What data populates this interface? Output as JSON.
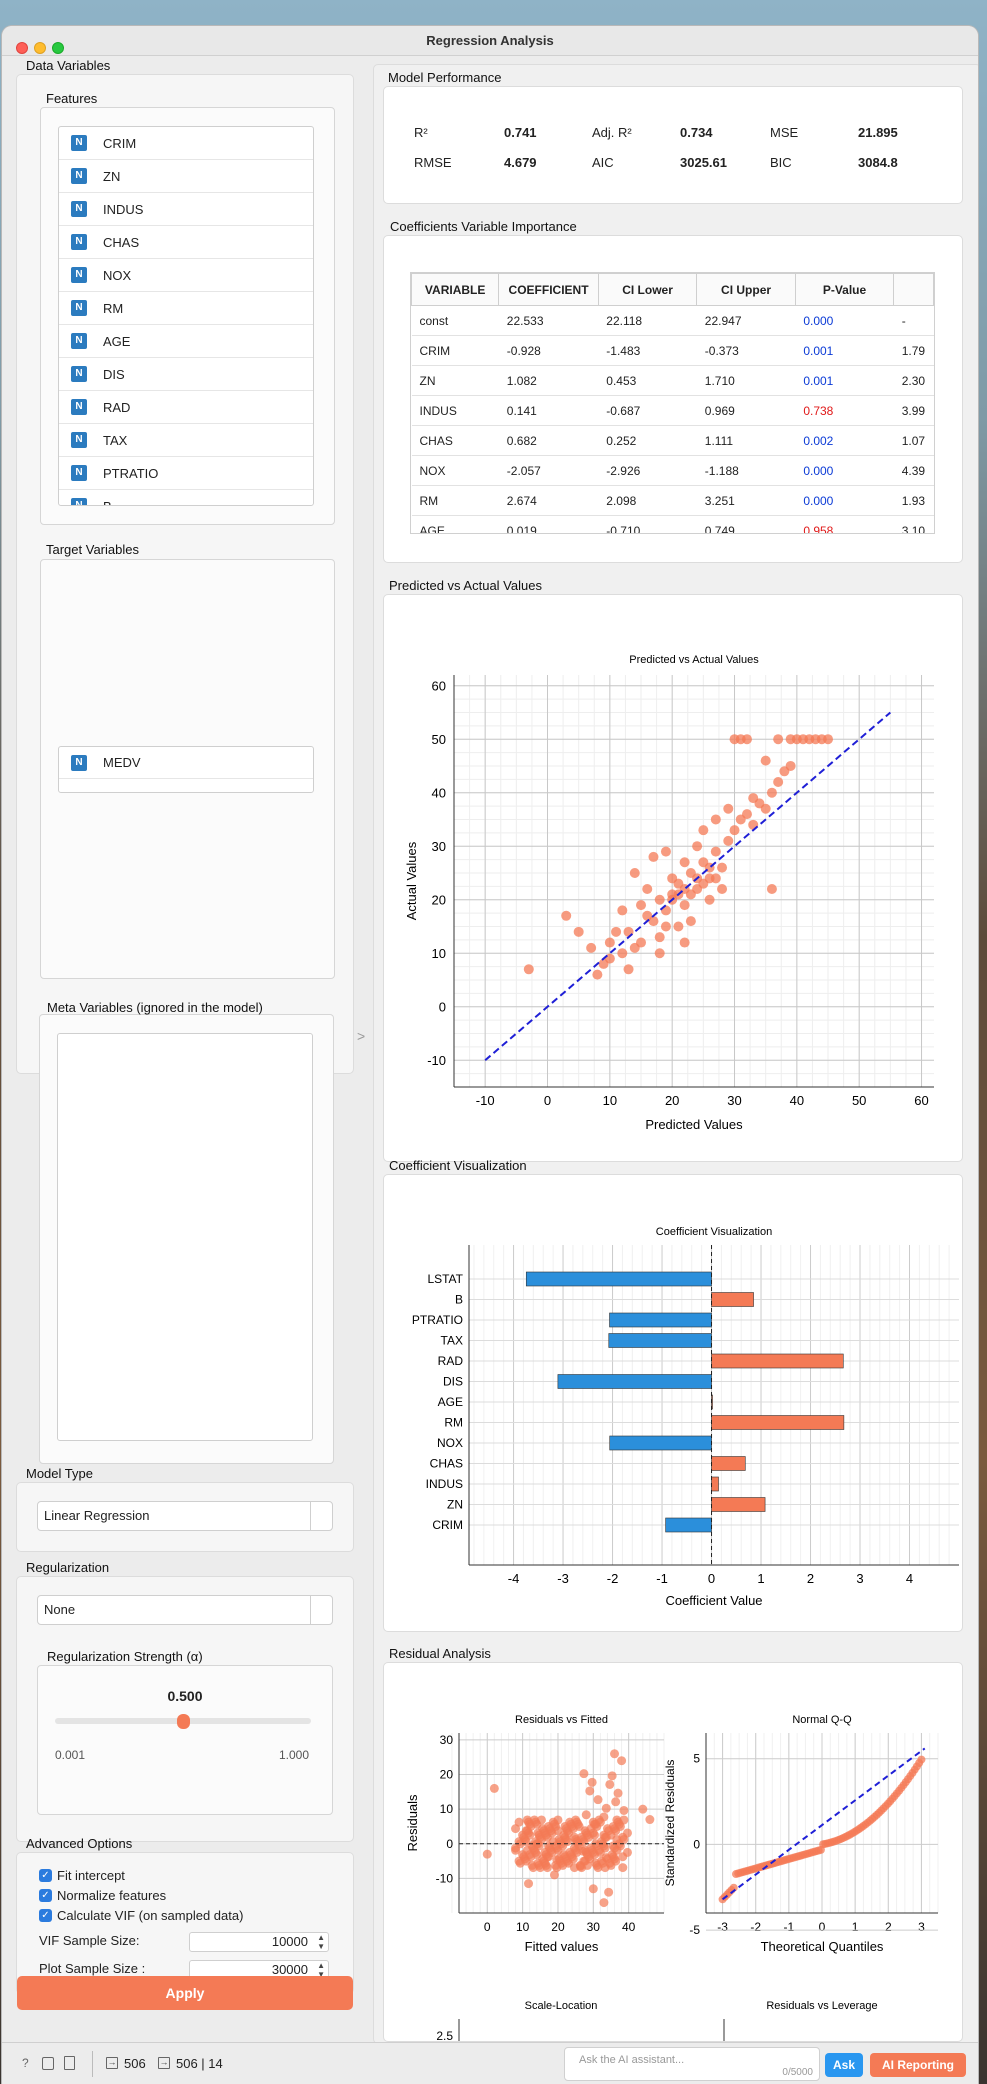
{
  "window": {
    "title": "Regression Analysis"
  },
  "left": {
    "data_variables": "Data Variables",
    "features_title": "Features",
    "features": [
      "CRIM",
      "ZN",
      "INDUS",
      "CHAS",
      "NOX",
      "RM",
      "AGE",
      "DIS",
      "RAD",
      "TAX",
      "PTRATIO",
      "B"
    ],
    "badge": "N",
    "target_title": "Target Variables",
    "targets": [
      "MEDV"
    ],
    "meta_title": "Meta Variables (ignored in the model)",
    "model_type_title": "Model Type",
    "model_type_value": "Linear Regression",
    "regularization_title": "Regularization",
    "regularization_value": "None",
    "strength_title": "Regularization Strength (α)",
    "strength_value": "0.500",
    "strength_fraction": 0.5,
    "strength_min": "0.001",
    "strength_max": "1.000",
    "advanced_title": "Advanced Options",
    "opt_fit_intercept": "Fit intercept",
    "opt_normalize": "Normalize features",
    "opt_vif": "Calculate VIF (on sampled data)",
    "vif_label": "VIF Sample Size:",
    "vif_value": "10000",
    "plot_label": "Plot Sample Size :",
    "plot_value": "30000",
    "apply": "Apply"
  },
  "performance": {
    "title": "Model Performance",
    "r2_label": "R²",
    "r2": "0.741",
    "adjr2_label": "Adj. R²",
    "adjr2": "0.734",
    "mse_label": "MSE",
    "mse": "21.895",
    "rmse_label": "RMSE",
    "rmse": "4.679",
    "aic_label": "AIC",
    "aic": "3025.61",
    "bic_label": "BIC",
    "bic": "3084.8"
  },
  "coef_table": {
    "title": "Coefficients  Variable Importance",
    "headers": [
      "VARIABLE",
      "COEFFICIENT",
      "CI Lower",
      "CI Upper",
      "P-Value",
      ""
    ],
    "rows": [
      [
        "const",
        "22.533",
        "22.118",
        "22.947",
        "0.000",
        "-"
      ],
      [
        "CRIM",
        "-0.928",
        "-1.483",
        "-0.373",
        "0.001",
        "1.79"
      ],
      [
        "ZN",
        "1.082",
        "0.453",
        "1.710",
        "0.001",
        "2.30"
      ],
      [
        "INDUS",
        "0.141",
        "-0.687",
        "0.969",
        "0.738",
        "3.99"
      ],
      [
        "CHAS",
        "0.682",
        "0.252",
        "1.111",
        "0.002",
        "1.07"
      ],
      [
        "NOX",
        "-2.057",
        "-2.926",
        "-1.188",
        "0.000",
        "4.39"
      ],
      [
        "RM",
        "2.674",
        "2.098",
        "3.251",
        "0.000",
        "1.93"
      ],
      [
        "AGE",
        "0.019",
        "-0.710",
        "0.749",
        "0.958",
        "3.10"
      ]
    ],
    "pvalue_colors": [
      "blue",
      "blue",
      "blue",
      "red",
      "blue",
      "blue",
      "blue",
      "red"
    ]
  },
  "pva_section": "Predicted vs Actual Values",
  "coefviz_section": "Coefficient Visualization",
  "residual_section": "Residual Analysis",
  "chart_data": [
    {
      "type": "scatter",
      "title": "Predicted vs Actual Values",
      "xlabel": "Predicted Values",
      "ylabel": "Actual Values",
      "xlim": [
        -15,
        62
      ],
      "ylim": [
        -15,
        62
      ],
      "xticks": [
        "-10",
        "0",
        "10",
        "20",
        "30",
        "40",
        "50",
        "60"
      ],
      "yticks": [
        "-10",
        "0",
        "10",
        "20",
        "30",
        "40",
        "50",
        "60"
      ],
      "grid": true,
      "reference_line": {
        "x": [
          -10,
          55
        ],
        "y": [
          -10,
          55
        ],
        "style": "dashed",
        "color": "#1f1fd6"
      },
      "point_color": "#f47a55",
      "points": [
        [
          -3,
          7
        ],
        [
          3,
          17
        ],
        [
          5,
          14
        ],
        [
          7,
          11
        ],
        [
          9,
          8
        ],
        [
          10,
          9
        ],
        [
          12,
          10
        ],
        [
          13,
          14
        ],
        [
          14,
          11
        ],
        [
          15,
          19
        ],
        [
          16,
          22
        ],
        [
          17,
          16
        ],
        [
          18,
          20
        ],
        [
          19,
          18
        ],
        [
          20,
          21
        ],
        [
          21,
          23
        ],
        [
          22,
          19
        ],
        [
          23,
          25
        ],
        [
          24,
          22
        ],
        [
          25,
          27
        ],
        [
          26,
          24
        ],
        [
          27,
          29
        ],
        [
          28,
          26
        ],
        [
          29,
          31
        ],
        [
          30,
          33
        ],
        [
          31,
          35
        ],
        [
          32,
          36
        ],
        [
          33,
          34
        ],
        [
          34,
          38
        ],
        [
          35,
          37
        ],
        [
          36,
          40
        ],
        [
          37,
          42
        ],
        [
          38,
          44
        ],
        [
          39,
          45
        ],
        [
          30,
          50
        ],
        [
          31,
          50
        ],
        [
          32,
          50
        ],
        [
          37,
          50
        ],
        [
          39,
          50
        ],
        [
          40,
          50
        ],
        [
          41,
          50
        ],
        [
          42,
          50
        ],
        [
          43,
          50
        ],
        [
          44,
          50
        ],
        [
          45,
          50
        ],
        [
          14,
          25
        ],
        [
          17,
          28
        ],
        [
          19,
          29
        ],
        [
          22,
          27
        ],
        [
          25,
          33
        ],
        [
          36,
          22
        ],
        [
          11,
          14
        ],
        [
          13,
          7
        ],
        [
          8,
          6
        ],
        [
          15,
          12
        ],
        [
          18,
          13
        ],
        [
          21,
          15
        ],
        [
          23,
          16
        ],
        [
          26,
          20
        ],
        [
          28,
          22
        ],
        [
          16,
          17
        ],
        [
          20,
          24
        ],
        [
          24,
          30
        ],
        [
          27,
          35
        ],
        [
          29,
          37
        ],
        [
          33,
          39
        ],
        [
          35,
          46
        ],
        [
          18,
          10
        ],
        [
          22,
          12
        ],
        [
          12,
          18
        ],
        [
          10,
          12
        ],
        [
          20,
          20
        ],
        [
          22,
          22
        ],
        [
          24,
          24
        ],
        [
          26,
          26
        ],
        [
          19,
          15
        ],
        [
          21,
          21
        ],
        [
          23,
          21
        ],
        [
          25,
          23
        ],
        [
          27,
          24
        ]
      ]
    },
    {
      "type": "bar",
      "orientation": "horizontal",
      "title": "Coefficient Visualization",
      "xlabel": "Coefficient Value",
      "categories": [
        "LSTAT",
        "B",
        "PTRATIO",
        "TAX",
        "RAD",
        "DIS",
        "AGE",
        "RM",
        "NOX",
        "CHAS",
        "INDUS",
        "ZN",
        "CRIM"
      ],
      "values": [
        -3.743,
        0.849,
        -2.061,
        -2.076,
        2.662,
        -3.104,
        0.019,
        2.674,
        -2.057,
        0.682,
        0.141,
        1.082,
        -0.928
      ],
      "xlim": [
        -4.9,
        5.0
      ],
      "xticks": [
        "-4",
        "-3",
        "-2",
        "-1",
        "0",
        "1",
        "2",
        "3",
        "4"
      ],
      "positive_color": "#f47a55",
      "negative_color": "#2b8fdb"
    },
    {
      "type": "scatter",
      "title": "Residuals vs Fitted",
      "xlabel": "Fitted values",
      "ylabel": "Residuals",
      "xlim": [
        -8,
        50
      ],
      "ylim": [
        -20,
        32
      ],
      "xticks": [
        "0",
        "10",
        "20",
        "30",
        "40"
      ],
      "yticks": [
        "-10",
        "0",
        "10",
        "20",
        "30"
      ],
      "zero_line": true
    },
    {
      "type": "scatter",
      "title": "Normal Q-Q",
      "xlabel": "Theoretical Quantiles",
      "ylabel": "Standardized Residuals",
      "xlim": [
        -3.5,
        3.5
      ],
      "ylim": [
        -4,
        6.5
      ],
      "xticks": [
        "-3",
        "-2",
        "-1",
        "0",
        "1",
        "2",
        "3"
      ],
      "yticks": [
        "-5",
        "0",
        "5"
      ]
    },
    {
      "type": "scatter",
      "title": "Scale-Location",
      "yticks": [
        "2.5"
      ]
    },
    {
      "type": "scatter",
      "title": "Residuals vs Leverage"
    }
  ],
  "status": {
    "rows_in": "506",
    "rows_out": "506 | 14",
    "ask_placeholder": "Ask the AI assistant...",
    "char_count": "0/5000",
    "ask": "Ask",
    "ai_reporting": "AI Reporting"
  }
}
